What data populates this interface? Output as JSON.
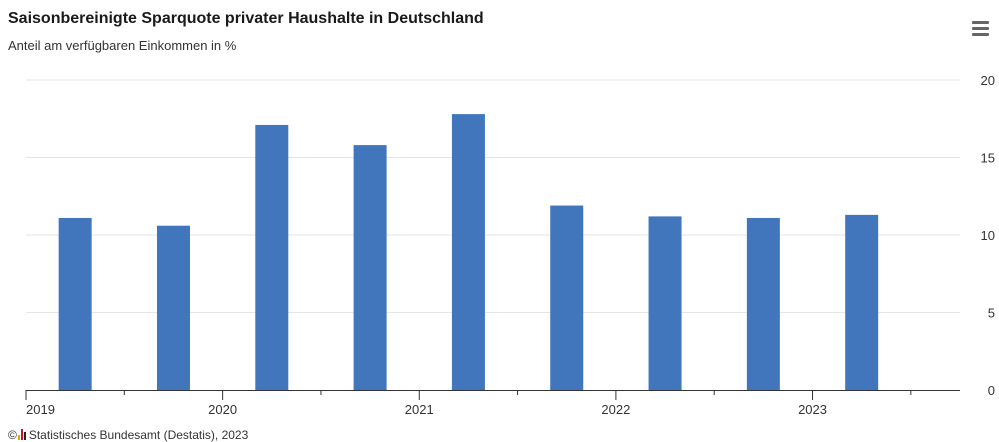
{
  "header": {
    "title": "Saisonbereinigte Sparquote privater Haushalte in Deutschland",
    "subtitle": "Anteil am verfügbaren Einkommen in %",
    "menu_icon": "hamburger-menu-icon"
  },
  "footer": {
    "credit": "Statistisches Bundesamt (Destatis), 2023",
    "credit_prefix": "©"
  },
  "colors": {
    "bar": "#4176bd",
    "grid": "#e6e6e6",
    "axis": "#333333"
  },
  "chart_data": {
    "type": "bar",
    "title": "Saisonbereinigte Sparquote privater Haushalte in Deutschland",
    "subtitle": "Anteil am verfügbaren Einkommen in %",
    "xlabel": "",
    "ylabel": "",
    "x_range": [
      2019.0,
      2023.75
    ],
    "x_ticks": [
      2019,
      2020,
      2021,
      2022,
      2023
    ],
    "ylim": [
      0,
      20
    ],
    "y_ticks": [
      0,
      5,
      10,
      15,
      20
    ],
    "y_axis_side": "right",
    "grid": true,
    "legend": "none",
    "x": [
      2019.25,
      2019.75,
      2020.25,
      2020.75,
      2021.25,
      2021.75,
      2022.25,
      2022.75,
      2023.25
    ],
    "values": [
      11.1,
      10.6,
      17.1,
      15.8,
      17.8,
      11.9,
      11.2,
      11.1,
      11.3
    ]
  }
}
